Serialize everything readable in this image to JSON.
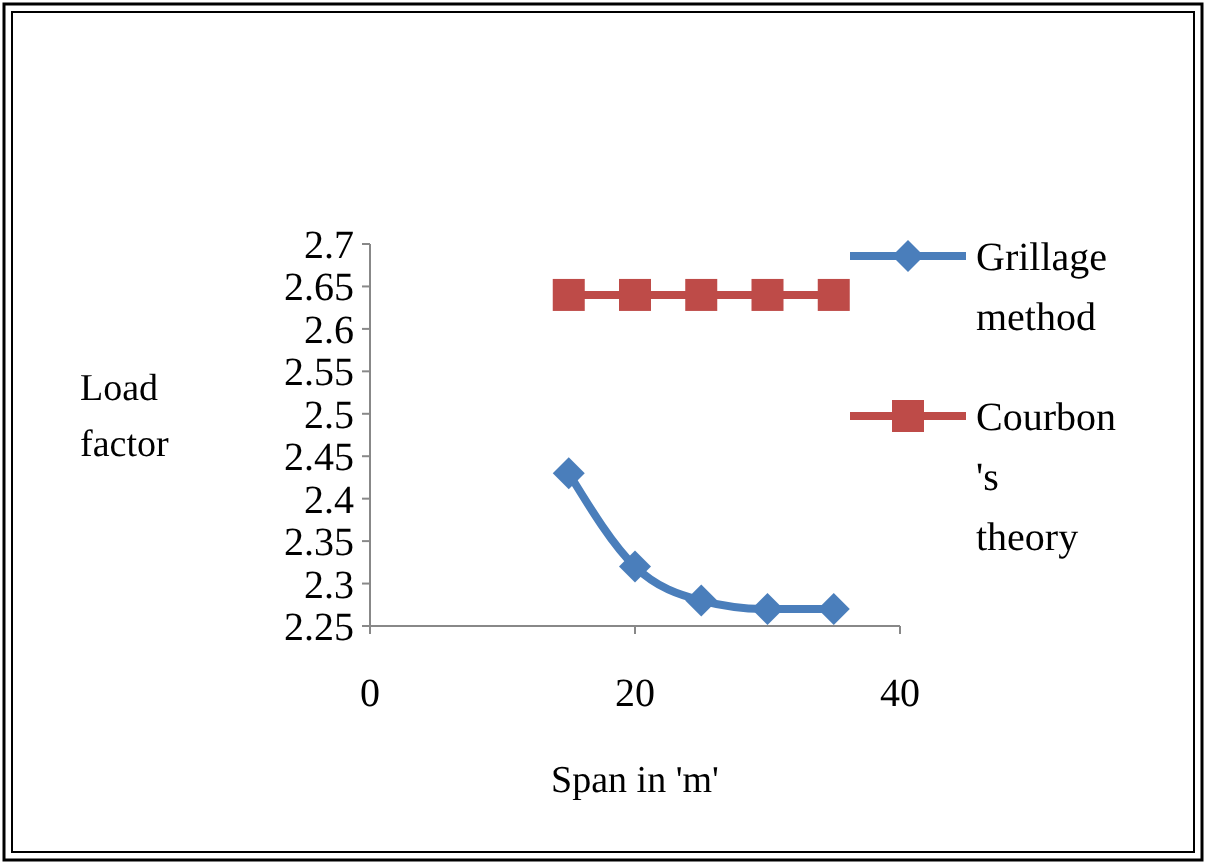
{
  "chart_data": {
    "type": "line",
    "xlabel": "Span in 'm'",
    "ylabel": "Load factor",
    "x": [
      15,
      20,
      25,
      30,
      35
    ],
    "xlim": [
      0,
      40
    ],
    "xticks": [
      0,
      20,
      40
    ],
    "ylim": [
      2.25,
      2.7
    ],
    "yticks": [
      2.25,
      2.3,
      2.35,
      2.4,
      2.45,
      2.5,
      2.55,
      2.6,
      2.65,
      2.7
    ],
    "legend": "right",
    "grid": false,
    "series": [
      {
        "name": "Grillage method",
        "color": "#4a7ebb",
        "marker": "diamond",
        "values": [
          2.43,
          2.32,
          2.28,
          2.27,
          2.27
        ]
      },
      {
        "name": "Courbon 's theory",
        "color": "#be4b48",
        "marker": "square",
        "values": [
          2.64,
          2.64,
          2.64,
          2.64,
          2.64
        ]
      }
    ]
  }
}
